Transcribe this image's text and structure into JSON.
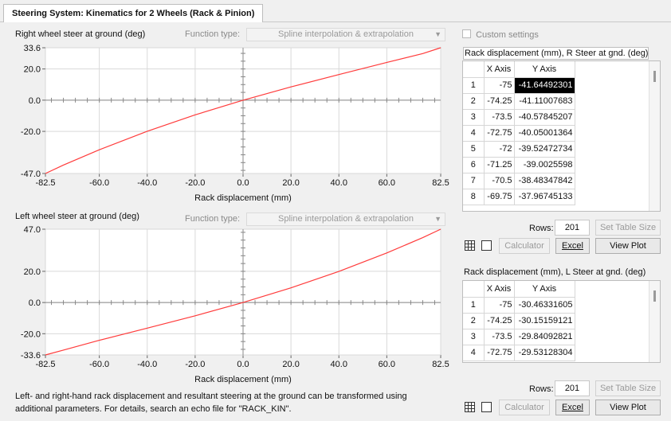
{
  "tab": {
    "title": "Steering System: Kinematics for 2 Wheels (Rack & Pinion)"
  },
  "plot_right": {
    "title": "Right wheel steer at ground (deg)",
    "function_type_label": "Function type:",
    "function_type_value": "Spline interpolation & extrapolation",
    "xlabel": "Rack displacement (mm)",
    "x_ticks": [
      "-82.5",
      "-60.0",
      "-40.0",
      "-20.0",
      "0.0",
      "20.0",
      "40.0",
      "60.0",
      "82.5"
    ],
    "y_ticks": [
      "33.6",
      "20.0",
      "0.0",
      "-20.0",
      "-47.0"
    ]
  },
  "plot_left": {
    "title": "Left wheel steer at ground (deg)",
    "function_type_label": "Function type:",
    "function_type_value": "Spline interpolation & extrapolation",
    "xlabel": "Rack displacement (mm)",
    "x_ticks": [
      "-82.5",
      "-60.0",
      "-40.0",
      "-20.0",
      "0.0",
      "20.0",
      "40.0",
      "60.0",
      "82.5"
    ],
    "y_ticks": [
      "47.0",
      "20.0",
      "0.0",
      "-20.0",
      "-33.6"
    ]
  },
  "custom_settings": {
    "label": "Custom settings",
    "checked": false
  },
  "table_right": {
    "caption": "Rack displacement (mm),  R Steer at gnd. (deg)",
    "col_x": "X Axis",
    "col_y": "Y Axis",
    "rows": [
      [
        "1",
        "-75",
        "-41.64492301"
      ],
      [
        "2",
        "-74.25",
        "-41.11007683"
      ],
      [
        "3",
        "-73.5",
        "-40.57845207"
      ],
      [
        "4",
        "-72.75",
        "-40.05001364"
      ],
      [
        "5",
        "-72",
        "-39.52472734"
      ],
      [
        "6",
        "-71.25",
        "-39.0025598"
      ],
      [
        "7",
        "-70.5",
        "-38.48347842"
      ],
      [
        "8",
        "-69.75",
        "-37.96745133"
      ]
    ],
    "rows_label": "Rows:",
    "rows_value": "201",
    "set_table_size": "Set Table Size",
    "calculator": "Calculator",
    "excel": "Excel",
    "view_plot": "View Plot"
  },
  "table_left": {
    "caption": "Rack displacement (mm), L Steer at gnd. (deg)",
    "col_x": "X Axis",
    "col_y": "Y Axis",
    "rows": [
      [
        "1",
        "-75",
        "-30.46331605"
      ],
      [
        "2",
        "-74.25",
        "-30.15159121"
      ],
      [
        "3",
        "-73.5",
        "-29.84092821"
      ],
      [
        "4",
        "-72.75",
        "-29.53128304"
      ]
    ],
    "rows_label": "Rows:",
    "rows_value": "201",
    "set_table_size": "Set Table Size",
    "calculator": "Calculator",
    "excel": "Excel",
    "view_plot": "View Plot"
  },
  "note": {
    "line1": "Left- and right-hand rack displacement and resultant steering at the ground can be transformed using",
    "line2": "additional parameters. For details, search an echo file for \"RACK_KIN\"."
  },
  "chart_data": [
    {
      "type": "line",
      "title": "Right wheel steer at ground (deg)",
      "xlabel": "Rack displacement (mm)",
      "ylabel": "",
      "xlim": [
        -82.5,
        82.5
      ],
      "ylim": [
        -47.0,
        33.6
      ],
      "color": "#ff3b3b",
      "series": [
        {
          "x": [
            -82.5,
            -75,
            -60,
            -40,
            -20,
            0,
            20,
            40,
            60,
            75,
            82.5
          ],
          "y": [
            -47.0,
            -41.6,
            -31.8,
            -19.9,
            -9.4,
            0.0,
            8.5,
            16.4,
            24.2,
            29.9,
            33.6
          ]
        }
      ]
    },
    {
      "type": "line",
      "title": "Left wheel steer at ground (deg)",
      "xlabel": "Rack displacement (mm)",
      "ylabel": "",
      "xlim": [
        -82.5,
        82.5
      ],
      "ylim": [
        -33.6,
        47.0
      ],
      "color": "#ff3b3b",
      "series": [
        {
          "x": [
            -82.5,
            -75,
            -60,
            -40,
            -20,
            0,
            20,
            40,
            60,
            75,
            82.5
          ],
          "y": [
            -33.6,
            -30.5,
            -24.2,
            -16.4,
            -8.5,
            0.0,
            9.4,
            19.9,
            31.8,
            41.6,
            47.0
          ]
        }
      ]
    }
  ]
}
